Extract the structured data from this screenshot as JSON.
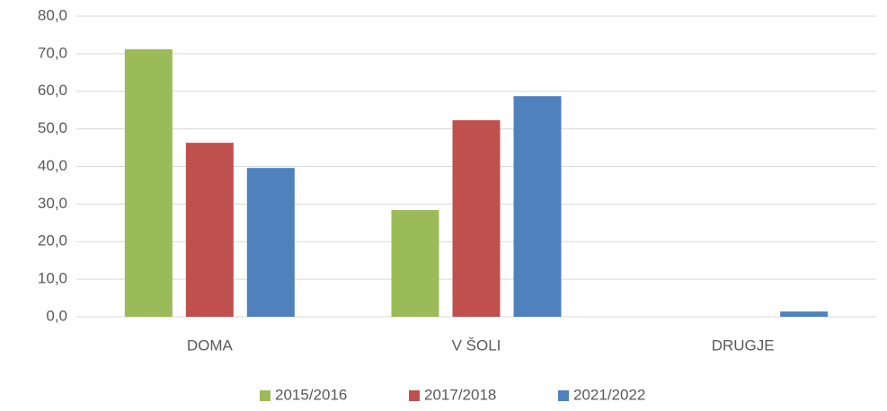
{
  "chart_data": {
    "type": "bar",
    "categories": [
      "DOMA",
      "V ŠOLI",
      "DRUGJE"
    ],
    "series": [
      {
        "name": "2015/2016",
        "color": "#9bbb59",
        "values": [
          71.2,
          28.4,
          0
        ]
      },
      {
        "name": "2017/2018",
        "color": "#c0504d",
        "values": [
          46.3,
          52.3,
          0
        ]
      },
      {
        "name": "2021/2022",
        "color": "#4f81bd",
        "values": [
          39.6,
          58.7,
          1.4
        ]
      }
    ],
    "ylim": [
      0,
      80
    ],
    "yticks": [
      {
        "value": 0,
        "label": "0,0"
      },
      {
        "value": 10,
        "label": "10,0"
      },
      {
        "value": 20,
        "label": "20,0"
      },
      {
        "value": 30,
        "label": "30,0"
      },
      {
        "value": 40,
        "label": "40,0"
      },
      {
        "value": 50,
        "label": "50,0"
      },
      {
        "value": 60,
        "label": "60,0"
      },
      {
        "value": 70,
        "label": "70,0"
      },
      {
        "value": 80,
        "label": "80,0"
      }
    ],
    "grid": true,
    "legend": "bottom"
  }
}
